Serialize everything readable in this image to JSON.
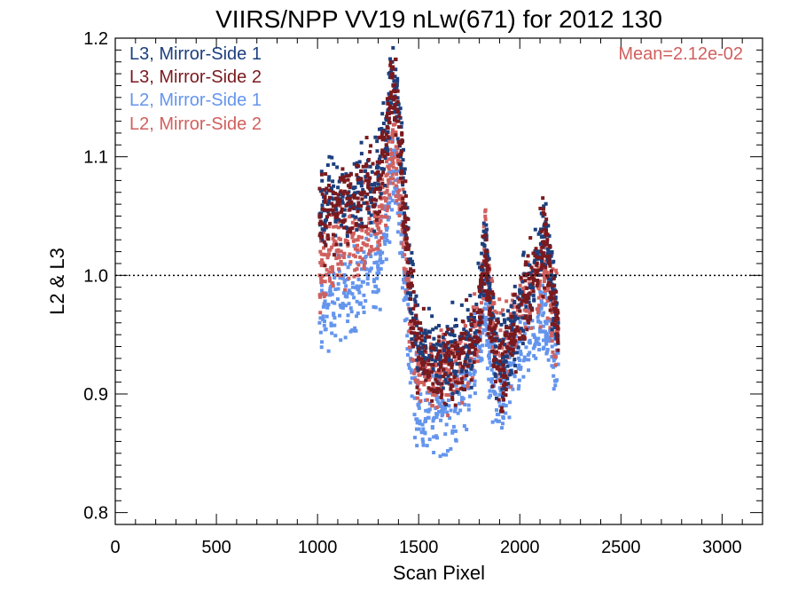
{
  "chart_data": {
    "type": "scatter",
    "title": "VIIRS/NPP VV19 nLw(671) for 2012 130",
    "xlabel": "Scan Pixel",
    "ylabel": "L2 & L3",
    "xlim": [
      0,
      3200
    ],
    "ylim": [
      0.79,
      1.2
    ],
    "xticks": [
      0,
      500,
      1000,
      1500,
      2000,
      2500,
      3000
    ],
    "xtick_labels": [
      "0",
      "500",
      "1000",
      "1500",
      "2000",
      "2500",
      "3000"
    ],
    "yticks": [
      0.8,
      0.9,
      1.0,
      1.1,
      1.2
    ],
    "ytick_labels": [
      "0.8",
      "0.9",
      "1.0",
      "1.1",
      "1.2"
    ],
    "reference_line": {
      "y": 1.0,
      "style": "dotted"
    },
    "annotation": "Mean=2.12e-02",
    "annotation_color": "#D0605E",
    "legend_position": "top-left",
    "series": [
      {
        "name": "L3, Mirror-Side 1",
        "color": "#1C3F7E",
        "offset": 0.0,
        "x": [
          1010,
          1050,
          1100,
          1150,
          1200,
          1250,
          1300,
          1340,
          1370,
          1400,
          1430,
          1460,
          1500,
          1550,
          1600,
          1650,
          1700,
          1750,
          1800,
          1830,
          1850,
          1880,
          1920,
          1960,
          2000,
          2050,
          2100,
          2130,
          2160,
          2190
        ],
        "y": [
          1.05,
          1.06,
          1.065,
          1.06,
          1.07,
          1.08,
          1.085,
          1.12,
          1.18,
          1.14,
          1.07,
          0.99,
          0.94,
          0.93,
          0.925,
          0.93,
          0.935,
          0.94,
          0.97,
          1.03,
          0.98,
          0.94,
          0.925,
          0.95,
          0.975,
          0.99,
          1.02,
          1.04,
          0.99,
          0.96
        ]
      },
      {
        "name": "L3, Mirror-Side 2",
        "color": "#7A1A1E",
        "offset": 0.0,
        "x": [
          1010,
          1050,
          1100,
          1150,
          1200,
          1250,
          1300,
          1340,
          1370,
          1400,
          1430,
          1460,
          1500,
          1550,
          1600,
          1650,
          1700,
          1750,
          1800,
          1830,
          1850,
          1880,
          1920,
          1960,
          2000,
          2050,
          2100,
          2130,
          2160,
          2190
        ],
        "y": [
          1.05,
          1.055,
          1.06,
          1.06,
          1.065,
          1.075,
          1.08,
          1.11,
          1.17,
          1.13,
          1.06,
          0.98,
          0.93,
          0.925,
          0.92,
          0.925,
          0.93,
          0.935,
          0.96,
          1.02,
          0.97,
          0.935,
          0.92,
          0.945,
          0.97,
          0.985,
          1.015,
          1.035,
          0.985,
          0.955
        ]
      },
      {
        "name": "L2, Mirror-Side 1",
        "color": "#6495ED",
        "offset": 0.0,
        "x": [
          1010,
          1050,
          1100,
          1150,
          1200,
          1250,
          1300,
          1340,
          1370,
          1400,
          1430,
          1460,
          1500,
          1550,
          1600,
          1650,
          1700,
          1750,
          1800,
          1830,
          1850,
          1880,
          1920,
          1960,
          2000,
          2050,
          2100,
          2130,
          2160,
          2190
        ],
        "y": [
          0.96,
          0.975,
          0.98,
          0.985,
          0.99,
          1.0,
          1.005,
          1.04,
          1.1,
          1.06,
          1.0,
          0.93,
          0.89,
          0.88,
          0.885,
          0.89,
          0.9,
          0.91,
          0.94,
          0.98,
          0.93,
          0.9,
          0.895,
          0.92,
          0.935,
          0.945,
          0.955,
          0.96,
          0.94,
          0.925
        ]
      },
      {
        "name": "L2, Mirror-Side 2",
        "color": "#D0605E",
        "offset": 0.0,
        "x": [
          1010,
          1050,
          1100,
          1150,
          1200,
          1250,
          1300,
          1340,
          1370,
          1400,
          1430,
          1460,
          1500,
          1550,
          1600,
          1650,
          1700,
          1750,
          1800,
          1830,
          1850,
          1880,
          1920,
          1960,
          2000,
          2050,
          2100,
          2130,
          2160,
          2190
        ],
        "y": [
          1.0,
          1.015,
          1.02,
          1.025,
          1.03,
          1.035,
          1.04,
          1.07,
          1.12,
          1.08,
          1.03,
          0.96,
          0.925,
          0.92,
          0.915,
          0.92,
          0.925,
          0.93,
          0.96,
          1.035,
          0.985,
          0.945,
          0.93,
          0.955,
          0.975,
          0.985,
          0.995,
          1.0,
          0.975,
          0.955
        ]
      }
    ]
  }
}
